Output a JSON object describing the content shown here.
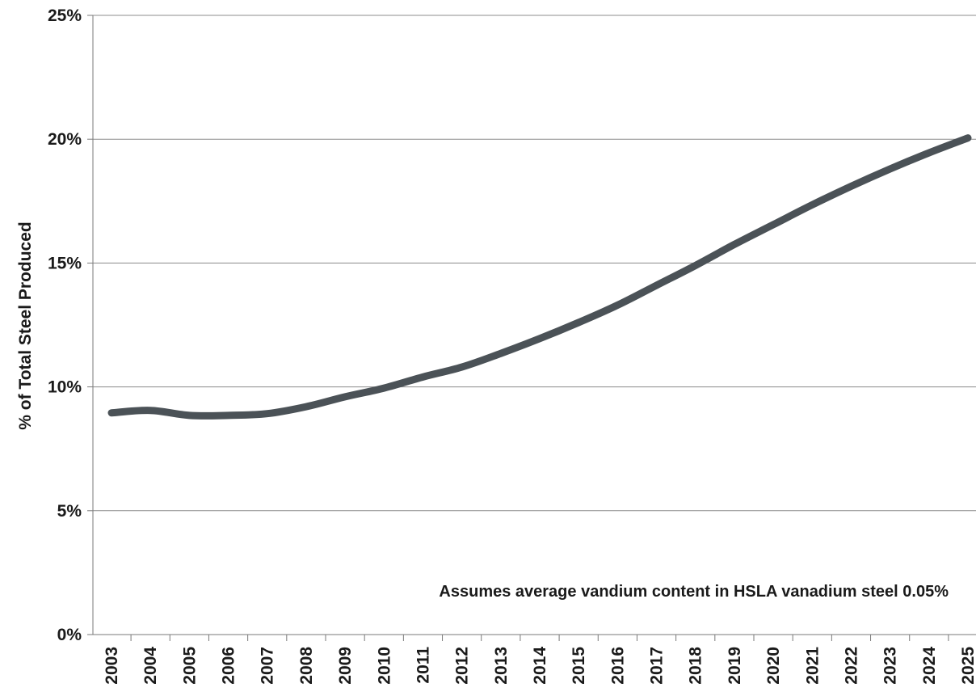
{
  "chart_data": {
    "type": "line",
    "title": "",
    "xlabel": "",
    "ylabel": "% of Total Steel Produced",
    "categories": [
      "2003",
      "2004",
      "2005",
      "2006",
      "2007",
      "2008",
      "2009",
      "2010",
      "2011",
      "2012",
      "2013",
      "2014",
      "2015",
      "2016",
      "2017",
      "2018",
      "2019",
      "2020",
      "2021",
      "2022",
      "2023",
      "2024",
      "2025"
    ],
    "series": [
      {
        "values": [
          8.95,
          9.05,
          8.85,
          8.85,
          8.92,
          9.2,
          9.6,
          9.95,
          10.4,
          10.8,
          11.35,
          11.95,
          12.6,
          13.3,
          14.1,
          14.9,
          15.75,
          16.55,
          17.35,
          18.1,
          18.8,
          19.45,
          20.05
        ],
        "color": "#4b5257"
      }
    ],
    "ylim": [
      0,
      25
    ],
    "yticks": [
      0,
      5,
      10,
      15,
      20,
      25
    ],
    "ytick_labels": [
      "0%",
      "5%",
      "10%",
      "15%",
      "20%",
      "25%"
    ],
    "grid": true,
    "legend": "none",
    "annotation": "Assumes average vandium content in HSLA vanadium steel 0.05%",
    "colors": {
      "line": "#4b5257",
      "grid": "#8c8c8c",
      "axis": "#7a7a7a",
      "text": "#1a1a1a"
    }
  }
}
